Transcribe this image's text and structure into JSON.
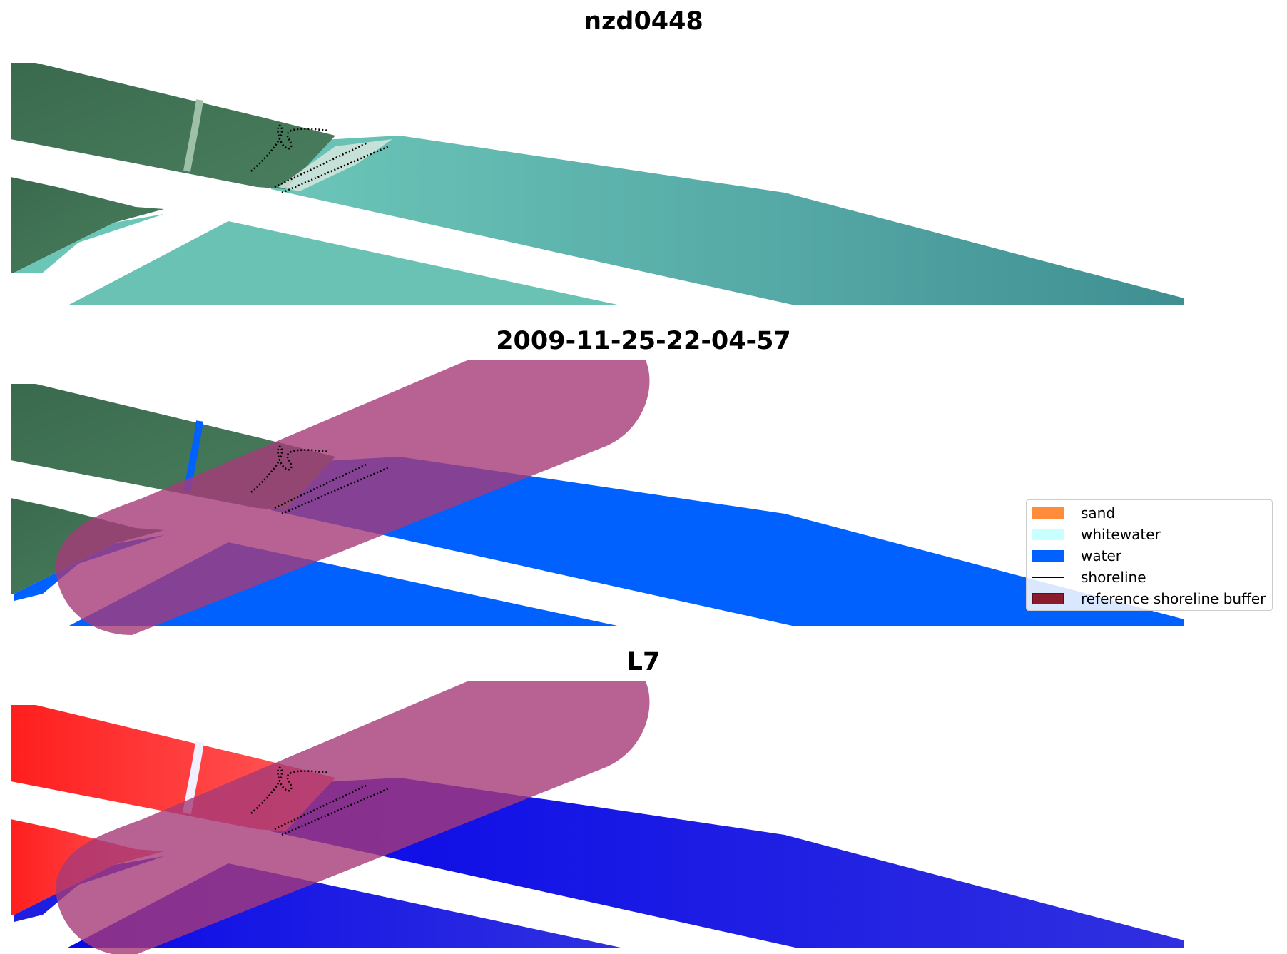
{
  "titles": {
    "panel1": "nzd0448",
    "panel2": "2009-11-25-22-04-57",
    "panel3": "L7"
  },
  "legend": {
    "items": [
      {
        "label": "sand",
        "color": "#FF8C3A",
        "kind": "patch"
      },
      {
        "label": "whitewater",
        "color": "#C8FFFF",
        "kind": "patch"
      },
      {
        "label": "water",
        "color": "#0061FF",
        "kind": "patch"
      },
      {
        "label": "shoreline",
        "color": "#000000",
        "kind": "line"
      },
      {
        "label": "reference shoreline buffer",
        "color": "#8B1A2B",
        "kind": "patch"
      }
    ]
  },
  "colors": {
    "land": "#3E6E52",
    "land_light": "#4A8060",
    "shallow_water": "#6CC6B8",
    "deep_water": "#3F8F92",
    "sand_bright": "#D8E8E0",
    "water_class": "#0061FF",
    "buffer": "#B05288",
    "buffer_over_water": "#52238F",
    "ndwi_land": "#FF2A2A",
    "ndwi_water": "#1414E6",
    "ndwi_buffer_water": "#5B1A9E",
    "shoreline": "#000000"
  }
}
